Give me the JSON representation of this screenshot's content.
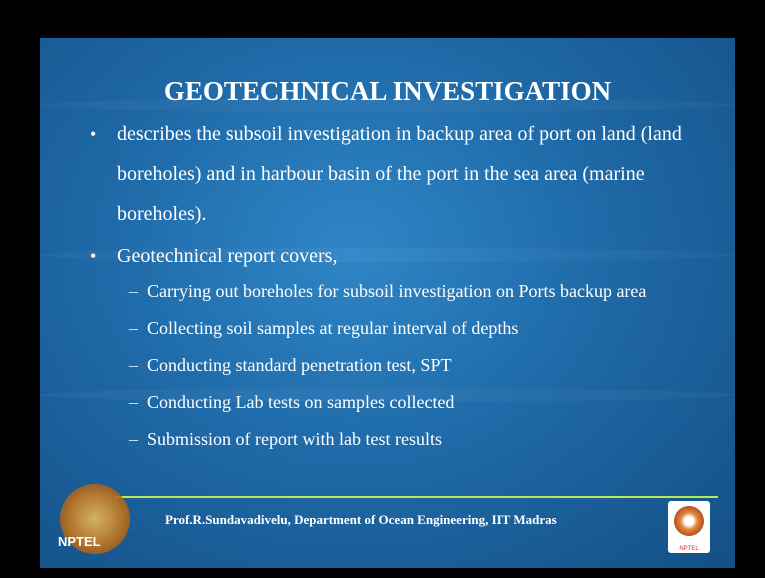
{
  "slide": {
    "title": "GEOTECHNICAL INVESTIGATION",
    "bullets": [
      {
        "text": "describes the subsoil investigation in backup area of port on land (land boreholes) and in harbour basin of the port in the sea area (marine boreholes).",
        "subitems": []
      },
      {
        "text": "Geotechnical report covers,",
        "subitems": [
          "Carrying out  boreholes for subsoil investigation on Ports backup area",
          "Collecting soil samples at regular interval of depths",
          "Conducting  standard penetration test, SPT",
          "Conducting Lab tests on samples collected",
          "Submission of report with lab test results"
        ]
      }
    ],
    "footer": "Prof.R.Sundavadivelu, Department of Ocean Engineering,  IIT Madras",
    "logo_label": "NPTEL"
  }
}
